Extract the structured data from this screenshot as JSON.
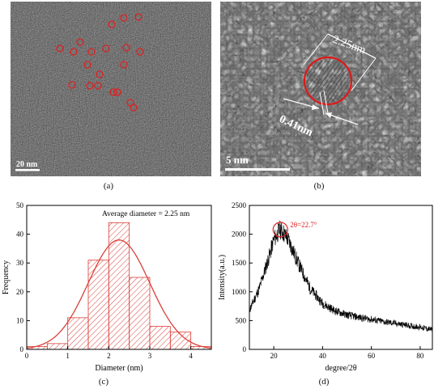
{
  "panels": {
    "a": {
      "caption": "(a)",
      "scale_label": "20 nm"
    },
    "b": {
      "caption": "(b)",
      "scale_label": "5 nm",
      "diameter_label": "2.25nm",
      "lattice_label": "0.41nm"
    },
    "c": {
      "caption": "(c)"
    },
    "d": {
      "caption": "(d)"
    }
  },
  "chart_data": [
    {
      "type": "bar",
      "subtype": "histogram-with-fit",
      "annotation": "Average diameter = 2.25 nm",
      "xlabel": "Diameter (nm)",
      "ylabel": "Frequency",
      "xlim": [
        0,
        4.5
      ],
      "ylim": [
        0,
        50
      ],
      "xticks": [
        "0",
        "1",
        "2",
        "3",
        "4"
      ],
      "yticks": [
        "0",
        "10",
        "20",
        "30",
        "40",
        "50"
      ],
      "bin_edges": [
        0,
        0.5,
        1.0,
        1.5,
        2.0,
        2.5,
        3.0,
        3.5,
        4.0,
        4.5
      ],
      "values": [
        1,
        2,
        11,
        31,
        44,
        25,
        8,
        6,
        1
      ],
      "fit": {
        "type": "gaussian",
        "center": 2.25,
        "peak": 38,
        "sigma": 0.75
      },
      "color": "#d9403a"
    },
    {
      "type": "line",
      "annotation": "2θ=22.7°",
      "xlabel": "degree/2θ",
      "ylabel": "Intensity(a.u.)",
      "xlim": [
        10,
        85
      ],
      "ylim": [
        0,
        2500
      ],
      "xticks": [
        "20",
        "40",
        "60",
        "80"
      ],
      "yticks": [
        "0",
        "500",
        "1000",
        "1500",
        "2000",
        "2500"
      ],
      "x": [
        10,
        14,
        18,
        20,
        22,
        22.7,
        24,
        26,
        30,
        35,
        40,
        45,
        50,
        55,
        60,
        65,
        70,
        75,
        80,
        85
      ],
      "y": [
        680,
        1050,
        1600,
        1900,
        2050,
        2080,
        2020,
        1900,
        1500,
        1050,
        800,
        670,
        600,
        555,
        520,
        480,
        450,
        415,
        385,
        340
      ],
      "color": "#000000"
    }
  ]
}
